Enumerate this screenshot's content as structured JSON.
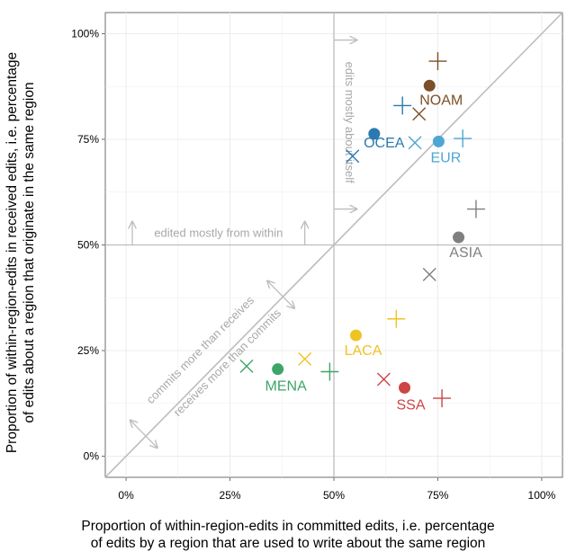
{
  "chart_data": {
    "type": "scatter",
    "xlabel": [
      "Proportion of within-region-edits in committed edits, i.e. percentage",
      "of edits by a region that are used to write about the same region"
    ],
    "ylabel": [
      "Proportion of within-region-edits in received edits, i.e. percentage",
      "of edits about a region that originate in the same region"
    ],
    "xlim": [
      -0.05,
      1.05
    ],
    "ylim": [
      -0.05,
      1.05
    ],
    "x_ticks": [
      {
        "value": 0,
        "label": "0%"
      },
      {
        "value": 0.25,
        "label": "25%"
      },
      {
        "value": 0.5,
        "label": "50%"
      },
      {
        "value": 0.75,
        "label": "75%"
      },
      {
        "value": 1,
        "label": "100%"
      }
    ],
    "y_ticks": [
      {
        "value": 0,
        "label": "0%"
      },
      {
        "value": 0.25,
        "label": "25%"
      },
      {
        "value": 0.5,
        "label": "50%"
      },
      {
        "value": 0.75,
        "label": "75%"
      },
      {
        "value": 1,
        "label": "100%"
      }
    ],
    "grid": true,
    "reference_lines": {
      "diagonal": true,
      "x": 0.5,
      "y": 0.5
    },
    "series": [
      {
        "name": "NOAM",
        "color": "#7b4f28",
        "points": [
          {
            "shape": "circle",
            "x": 0.73,
            "y": 0.877
          },
          {
            "shape": "plus",
            "x": 0.75,
            "y": 0.935
          },
          {
            "shape": "x",
            "x": 0.705,
            "y": 0.81
          }
        ]
      },
      {
        "name": "OCEA",
        "color": "#2a79b1",
        "points": [
          {
            "shape": "circle",
            "x": 0.597,
            "y": 0.763
          },
          {
            "shape": "plus",
            "x": 0.665,
            "y": 0.83
          },
          {
            "shape": "x",
            "x": 0.545,
            "y": 0.71
          }
        ]
      },
      {
        "name": "EUR",
        "color": "#4ea6d2",
        "points": [
          {
            "shape": "circle",
            "x": 0.752,
            "y": 0.745
          },
          {
            "shape": "plus",
            "x": 0.81,
            "y": 0.752
          },
          {
            "shape": "x",
            "x": 0.695,
            "y": 0.742
          }
        ]
      },
      {
        "name": "ASIA",
        "color": "#7f7f7f",
        "points": [
          {
            "shape": "circle",
            "x": 0.8,
            "y": 0.518
          },
          {
            "shape": "plus",
            "x": 0.842,
            "y": 0.585
          },
          {
            "shape": "x",
            "x": 0.73,
            "y": 0.43
          }
        ]
      },
      {
        "name": "LACA",
        "color": "#efc322",
        "points": [
          {
            "shape": "circle",
            "x": 0.553,
            "y": 0.286
          },
          {
            "shape": "plus",
            "x": 0.65,
            "y": 0.325
          },
          {
            "shape": "x",
            "x": 0.43,
            "y": 0.23
          }
        ]
      },
      {
        "name": "MENA",
        "color": "#3da566",
        "points": [
          {
            "shape": "circle",
            "x": 0.365,
            "y": 0.206
          },
          {
            "shape": "plus",
            "x": 0.49,
            "y": 0.2
          },
          {
            "shape": "x",
            "x": 0.29,
            "y": 0.213
          }
        ]
      },
      {
        "name": "SSA",
        "color": "#cc4444",
        "points": [
          {
            "shape": "circle",
            "x": 0.67,
            "y": 0.162
          },
          {
            "shape": "plus",
            "x": 0.76,
            "y": 0.137
          },
          {
            "shape": "x",
            "x": 0.62,
            "y": 0.182
          }
        ]
      }
    ],
    "annotations": [
      "edits mostly about itself",
      "edited mostly from within",
      "commits more than receives",
      "receives more than commits"
    ]
  }
}
